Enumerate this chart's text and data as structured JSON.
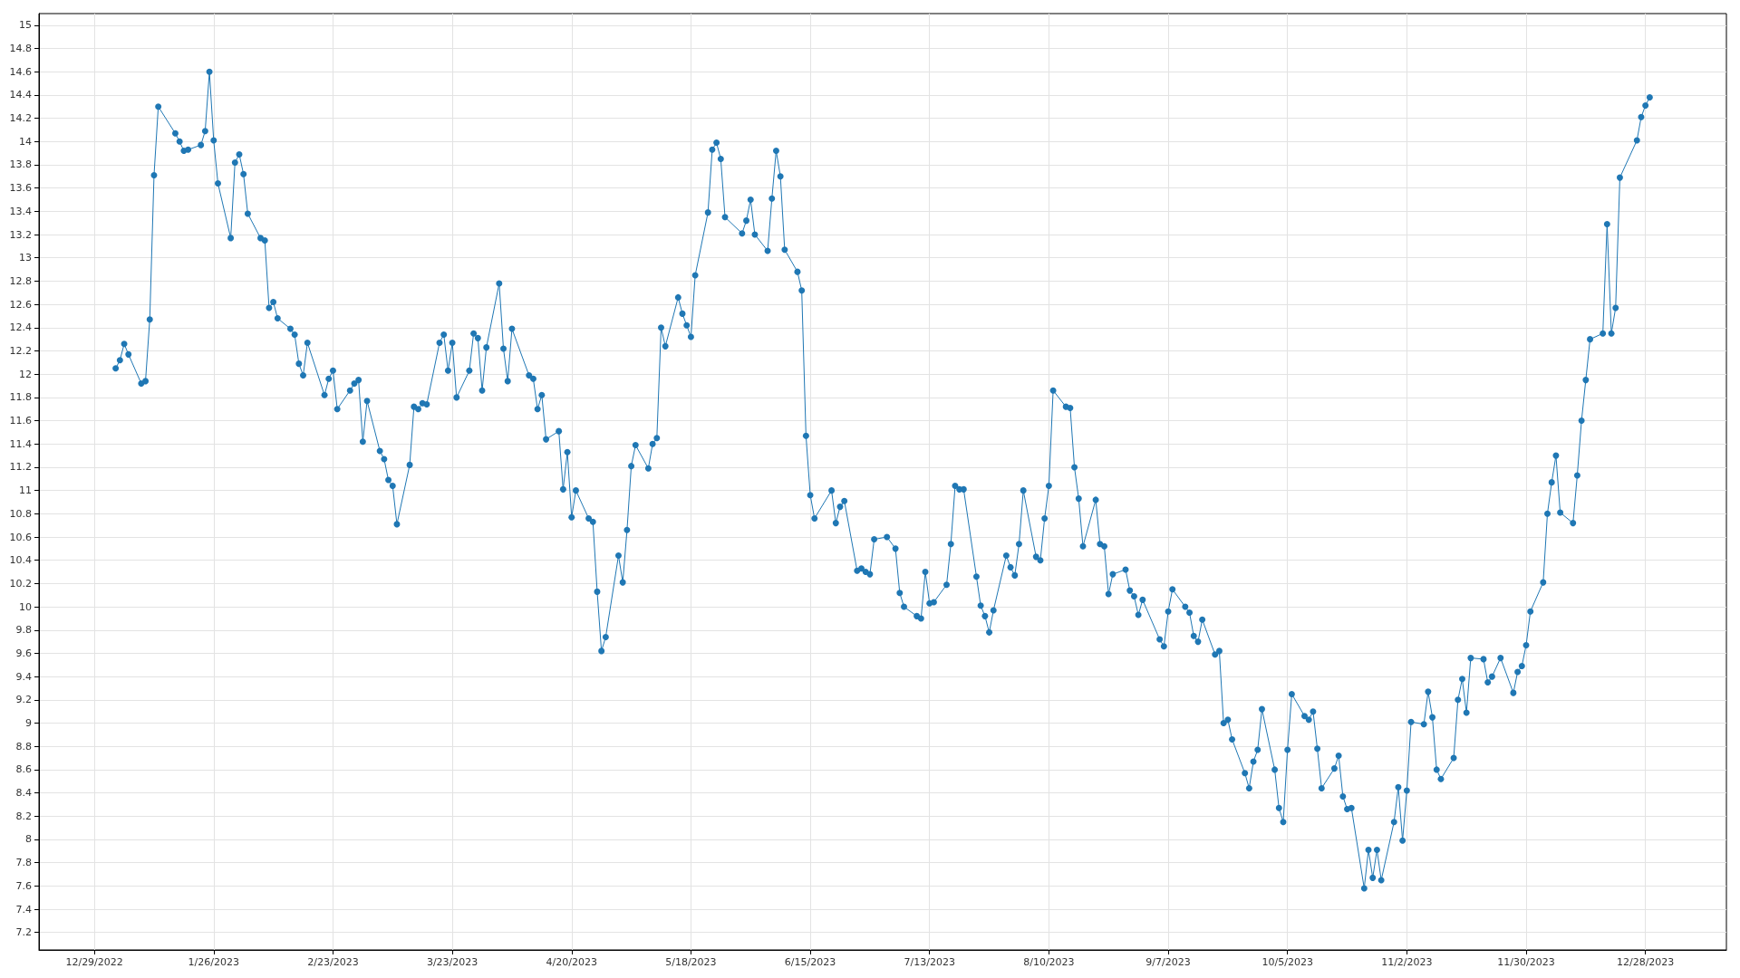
{
  "chart_data": {
    "type": "line",
    "marker": "circle",
    "grid": true,
    "xlim": [
      "2022-12-16",
      "2024-01-16"
    ],
    "xticks": [
      {
        "value": "2022-12-29",
        "label": "12/29/2022"
      },
      {
        "value": "2023-01-26",
        "label": "1/26/2023"
      },
      {
        "value": "2023-02-23",
        "label": "2/23/2023"
      },
      {
        "value": "2023-03-23",
        "label": "3/23/2023"
      },
      {
        "value": "2023-04-20",
        "label": "4/20/2023"
      },
      {
        "value": "2023-05-18",
        "label": "5/18/2023"
      },
      {
        "value": "2023-06-15",
        "label": "6/15/2023"
      },
      {
        "value": "2023-07-13",
        "label": "7/13/2023"
      },
      {
        "value": "2023-08-10",
        "label": "8/10/2023"
      },
      {
        "value": "2023-09-07",
        "label": "9/7/2023"
      },
      {
        "value": "2023-10-05",
        "label": "10/5/2023"
      },
      {
        "value": "2023-11-02",
        "label": "11/2/2023"
      },
      {
        "value": "2023-11-30",
        "label": "11/30/2023"
      },
      {
        "value": "2023-12-28",
        "label": "12/28/2023"
      }
    ],
    "ylim": [
      7.05,
      15.1
    ],
    "yticks": [
      7.2,
      7.4,
      7.6,
      7.8,
      8,
      8.2,
      8.4,
      8.6,
      8.8,
      9,
      9.2,
      9.4,
      9.6,
      9.8,
      10,
      10.2,
      10.4,
      10.6,
      10.8,
      11,
      11.2,
      11.4,
      11.6,
      11.8,
      12,
      12.2,
      12.4,
      12.6,
      12.8,
      13,
      13.2,
      13.4,
      13.6,
      13.8,
      14,
      14.2,
      14.4,
      14.6,
      14.8,
      15
    ],
    "x": [
      "2023-01-03",
      "2023-01-04",
      "2023-01-05",
      "2023-01-06",
      "2023-01-09",
      "2023-01-10",
      "2023-01-11",
      "2023-01-12",
      "2023-01-13",
      "2023-01-17",
      "2023-01-18",
      "2023-01-19",
      "2023-01-20",
      "2023-01-23",
      "2023-01-24",
      "2023-01-25",
      "2023-01-26",
      "2023-01-27",
      "2023-01-30",
      "2023-01-31",
      "2023-02-01",
      "2023-02-02",
      "2023-02-03",
      "2023-02-06",
      "2023-02-07",
      "2023-02-08",
      "2023-02-09",
      "2023-02-10",
      "2023-02-13",
      "2023-02-14",
      "2023-02-15",
      "2023-02-16",
      "2023-02-17",
      "2023-02-21",
      "2023-02-22",
      "2023-02-23",
      "2023-02-24",
      "2023-02-27",
      "2023-02-28",
      "2023-03-01",
      "2023-03-02",
      "2023-03-03",
      "2023-03-06",
      "2023-03-07",
      "2023-03-08",
      "2023-03-09",
      "2023-03-10",
      "2023-03-13",
      "2023-03-14",
      "2023-03-15",
      "2023-03-16",
      "2023-03-17",
      "2023-03-20",
      "2023-03-21",
      "2023-03-22",
      "2023-03-23",
      "2023-03-24",
      "2023-03-27",
      "2023-03-28",
      "2023-03-29",
      "2023-03-30",
      "2023-03-31",
      "2023-04-03",
      "2023-04-04",
      "2023-04-05",
      "2023-04-06",
      "2023-04-10",
      "2023-04-11",
      "2023-04-12",
      "2023-04-13",
      "2023-04-14",
      "2023-04-17",
      "2023-04-18",
      "2023-04-19",
      "2023-04-20",
      "2023-04-21",
      "2023-04-24",
      "2023-04-25",
      "2023-04-26",
      "2023-04-27",
      "2023-04-28",
      "2023-05-01",
      "2023-05-02",
      "2023-05-03",
      "2023-05-04",
      "2023-05-05",
      "2023-05-08",
      "2023-05-09",
      "2023-05-10",
      "2023-05-11",
      "2023-05-12",
      "2023-05-15",
      "2023-05-16",
      "2023-05-17",
      "2023-05-18",
      "2023-05-19",
      "2023-05-22",
      "2023-05-23",
      "2023-05-24",
      "2023-05-25",
      "2023-05-26",
      "2023-05-30",
      "2023-05-31",
      "2023-06-01",
      "2023-06-02",
      "2023-06-05",
      "2023-06-06",
      "2023-06-07",
      "2023-06-08",
      "2023-06-09",
      "2023-06-12",
      "2023-06-13",
      "2023-06-14",
      "2023-06-15",
      "2023-06-16",
      "2023-06-20",
      "2023-06-21",
      "2023-06-22",
      "2023-06-23",
      "2023-06-26",
      "2023-06-27",
      "2023-06-28",
      "2023-06-29",
      "2023-06-30",
      "2023-07-03",
      "2023-07-05",
      "2023-07-06",
      "2023-07-07",
      "2023-07-10",
      "2023-07-11",
      "2023-07-12",
      "2023-07-13",
      "2023-07-14",
      "2023-07-17",
      "2023-07-18",
      "2023-07-19",
      "2023-07-20",
      "2023-07-21",
      "2023-07-24",
      "2023-07-25",
      "2023-07-26",
      "2023-07-27",
      "2023-07-28",
      "2023-07-31",
      "2023-08-01",
      "2023-08-02",
      "2023-08-03",
      "2023-08-04",
      "2023-08-07",
      "2023-08-08",
      "2023-08-09",
      "2023-08-10",
      "2023-08-11",
      "2023-08-14",
      "2023-08-15",
      "2023-08-16",
      "2023-08-17",
      "2023-08-18",
      "2023-08-21",
      "2023-08-22",
      "2023-08-23",
      "2023-08-24",
      "2023-08-25",
      "2023-08-28",
      "2023-08-29",
      "2023-08-30",
      "2023-08-31",
      "2023-09-01",
      "2023-09-05",
      "2023-09-06",
      "2023-09-07",
      "2023-09-08",
      "2023-09-11",
      "2023-09-12",
      "2023-09-13",
      "2023-09-14",
      "2023-09-15",
      "2023-09-18",
      "2023-09-19",
      "2023-09-20",
      "2023-09-21",
      "2023-09-22",
      "2023-09-25",
      "2023-09-26",
      "2023-09-27",
      "2023-09-28",
      "2023-09-29",
      "2023-10-02",
      "2023-10-03",
      "2023-10-04",
      "2023-10-05",
      "2023-10-06",
      "2023-10-09",
      "2023-10-10",
      "2023-10-11",
      "2023-10-12",
      "2023-10-13",
      "2023-10-16",
      "2023-10-17",
      "2023-10-18",
      "2023-10-19",
      "2023-10-20",
      "2023-10-23",
      "2023-10-24",
      "2023-10-25",
      "2023-10-26",
      "2023-10-27",
      "2023-10-30",
      "2023-10-31",
      "2023-11-01",
      "2023-11-02",
      "2023-11-03",
      "2023-11-06",
      "2023-11-07",
      "2023-11-08",
      "2023-11-09",
      "2023-11-10",
      "2023-11-13",
      "2023-11-14",
      "2023-11-15",
      "2023-11-16",
      "2023-11-17",
      "2023-11-20",
      "2023-11-21",
      "2023-11-22",
      "2023-11-24",
      "2023-11-27",
      "2023-11-28",
      "2023-11-29",
      "2023-11-30",
      "2023-12-01",
      "2023-12-04",
      "2023-12-05",
      "2023-12-06",
      "2023-12-07",
      "2023-12-08",
      "2023-12-11",
      "2023-12-12",
      "2023-12-13",
      "2023-12-14",
      "2023-12-15",
      "2023-12-18",
      "2023-12-19",
      "2023-12-20",
      "2023-12-21",
      "2023-12-22",
      "2023-12-26",
      "2023-12-27",
      "2023-12-28",
      "2023-12-29"
    ],
    "series": [
      {
        "color": "#1f77b4",
        "values": [
          12.05,
          12.12,
          12.26,
          12.17,
          11.92,
          11.94,
          12.47,
          13.71,
          14.3,
          14.07,
          14.0,
          13.92,
          13.93,
          13.97,
          14.09,
          14.6,
          14.01,
          13.64,
          13.17,
          13.82,
          13.89,
          13.72,
          13.38,
          13.17,
          13.15,
          12.57,
          12.62,
          12.48,
          12.39,
          12.34,
          12.09,
          11.99,
          12.27,
          11.82,
          11.96,
          12.03,
          11.7,
          11.86,
          11.92,
          11.95,
          11.42,
          11.77,
          11.34,
          11.27,
          11.09,
          11.04,
          10.71,
          11.22,
          11.72,
          11.7,
          11.75,
          11.74,
          12.27,
          12.34,
          12.03,
          12.27,
          11.8,
          12.03,
          12.35,
          12.31,
          11.86,
          12.23,
          12.78,
          12.22,
          11.94,
          12.39,
          11.99,
          11.96,
          11.7,
          11.82,
          11.44,
          11.51,
          11.01,
          11.33,
          10.77,
          11.0,
          10.76,
          10.73,
          10.13,
          9.62,
          9.74,
          10.44,
          10.21,
          10.66,
          11.21,
          11.39,
          11.19,
          11.4,
          11.45,
          12.4,
          12.24,
          12.66,
          12.52,
          12.42,
          12.32,
          12.85,
          13.39,
          13.93,
          13.99,
          13.85,
          13.35,
          13.21,
          13.32,
          13.5,
          13.2,
          13.06,
          13.51,
          13.92,
          13.7,
          13.07,
          12.88,
          12.72,
          11.47,
          10.96,
          10.76,
          11.0,
          10.72,
          10.86,
          10.91,
          10.31,
          10.33,
          10.3,
          10.28,
          10.58,
          10.6,
          10.5,
          10.12,
          10.0,
          9.92,
          9.9,
          10.3,
          10.03,
          10.04,
          10.19,
          10.54,
          11.04,
          11.01,
          11.01,
          10.26,
          10.01,
          9.92,
          9.78,
          9.97,
          10.44,
          10.34,
          10.27,
          10.54,
          11.0,
          10.43,
          10.4,
          10.76,
          11.04,
          11.86,
          11.72,
          11.71,
          11.2,
          10.93,
          10.52,
          10.92,
          10.54,
          10.52,
          10.11,
          10.28,
          10.32,
          10.14,
          10.09,
          9.93,
          10.06,
          9.72,
          9.66,
          9.96,
          10.15,
          10.0,
          9.95,
          9.75,
          9.7,
          9.89,
          9.59,
          9.62,
          9.0,
          9.03,
          8.86,
          8.57,
          8.44,
          8.67,
          8.77,
          9.12,
          8.6,
          8.27,
          8.15,
          8.77,
          9.25,
          9.06,
          9.03,
          9.1,
          8.78,
          8.44,
          8.61,
          8.72,
          8.37,
          8.26,
          8.27,
          7.58,
          7.91,
          7.67,
          7.91,
          7.65,
          8.15,
          8.45,
          7.99,
          8.42,
          9.01,
          8.99,
          9.27,
          9.05,
          8.6,
          8.52,
          8.7,
          9.2,
          9.38,
          9.09,
          9.56,
          9.55,
          9.35,
          9.4,
          9.56,
          9.26,
          9.44,
          9.49,
          9.67,
          9.96,
          10.21,
          10.8,
          11.07,
          11.3,
          10.81,
          10.72,
          11.13,
          11.6,
          11.95,
          12.3,
          12.35,
          13.29,
          12.35,
          12.57,
          13.69,
          14.01,
          14.21,
          14.31,
          14.38
        ]
      }
    ]
  }
}
